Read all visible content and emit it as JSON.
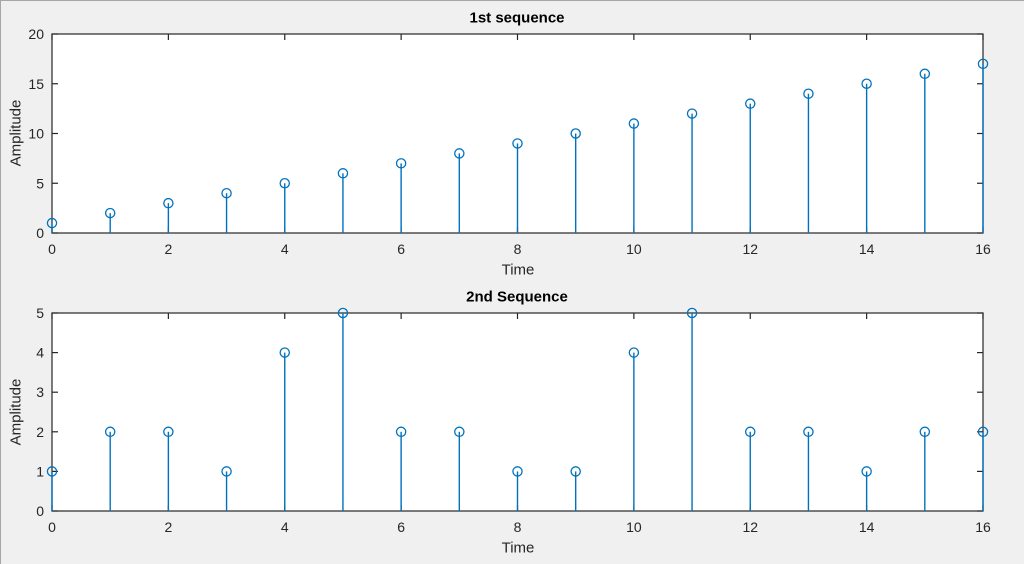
{
  "figure": {
    "colors": {
      "background": "#f0f0f0",
      "plot_background": "#ffffff",
      "axis": "#262626",
      "stem": "#0072bd",
      "title_text": "#000000",
      "label_text": "#262626"
    }
  },
  "chart_data": [
    {
      "type": "stem",
      "title": "1st sequence",
      "xlabel": "Time",
      "ylabel": "Amplitude",
      "x": [
        0,
        1,
        2,
        3,
        4,
        5,
        6,
        7,
        8,
        9,
        10,
        11,
        12,
        13,
        14,
        15,
        16
      ],
      "values": [
        1,
        2,
        3,
        4,
        5,
        6,
        7,
        8,
        9,
        10,
        11,
        12,
        13,
        14,
        15,
        16,
        17
      ],
      "xlim": [
        0,
        16
      ],
      "ylim": [
        0,
        20
      ],
      "xticks": [
        0,
        2,
        4,
        6,
        8,
        10,
        12,
        14,
        16
      ],
      "yticks": [
        0,
        5,
        10,
        15,
        20
      ],
      "grid": false,
      "legend": null,
      "marker": "hollow-circle"
    },
    {
      "type": "stem",
      "title": "2nd Sequence",
      "xlabel": "Time",
      "ylabel": "Amplitude",
      "x": [
        0,
        1,
        2,
        3,
        4,
        5,
        6,
        7,
        8,
        9,
        10,
        11,
        12,
        13,
        14,
        15,
        16
      ],
      "values": [
        1,
        2,
        2,
        1,
        4,
        5,
        2,
        2,
        1,
        1,
        4,
        5,
        2,
        2,
        1,
        2,
        2
      ],
      "xlim": [
        0,
        16
      ],
      "ylim": [
        0,
        5
      ],
      "xticks": [
        0,
        2,
        4,
        6,
        8,
        10,
        12,
        14,
        16
      ],
      "yticks": [
        0,
        1,
        2,
        3,
        4,
        5
      ],
      "grid": false,
      "legend": null,
      "marker": "hollow-circle"
    }
  ]
}
